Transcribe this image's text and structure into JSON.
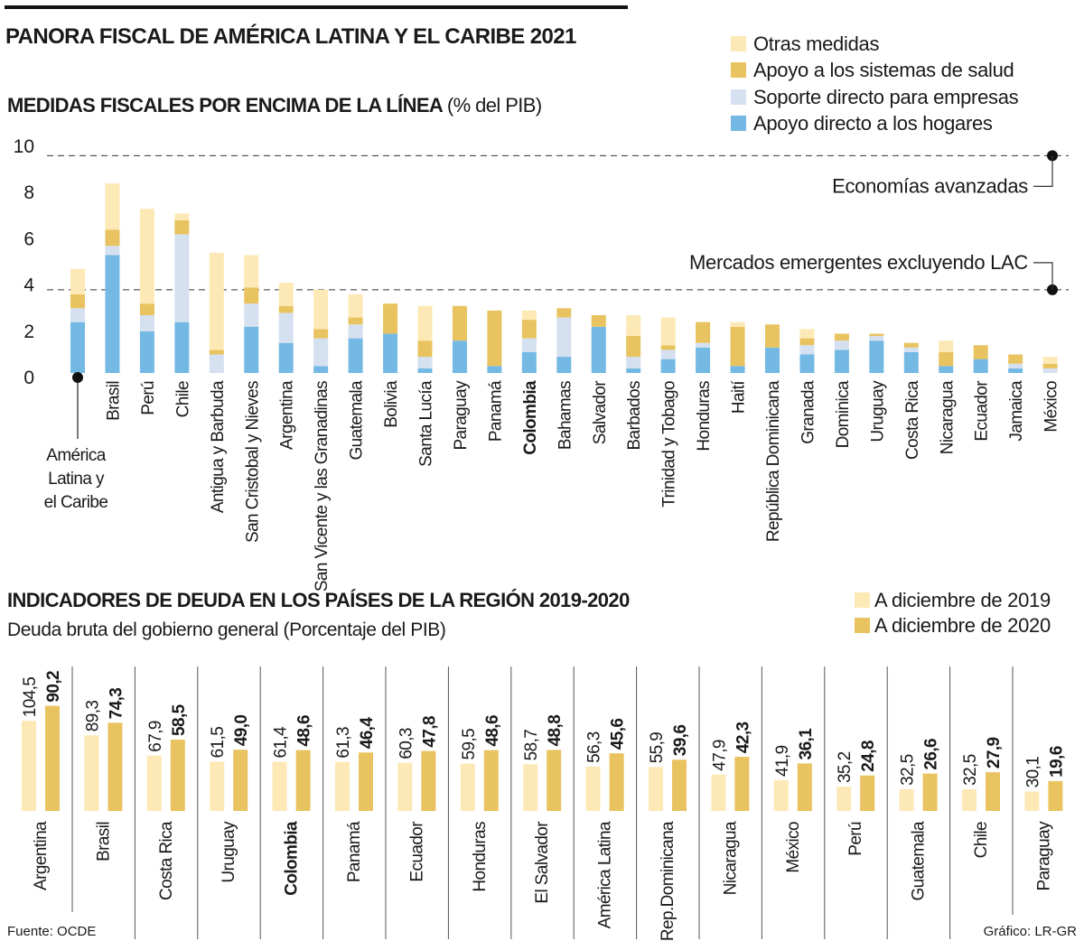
{
  "title": "PANORA FISCAL DE AMÉRICA LATINA Y EL CARIBE 2021",
  "colors": {
    "otras": "#fde9b5",
    "salud": "#e8c35f",
    "empresas": "#d5e0f0",
    "hogares": "#74b9e4",
    "debt2019": "#fde9b5",
    "debt2020": "#e8c35f"
  },
  "chart_data": [
    {
      "type": "bar",
      "stacked": true,
      "title": "MEDIDAS FISCALES POR ENCIMA DE LA LÍNEA",
      "title_unit": "(% del PIB)",
      "ylim": [
        0,
        10
      ],
      "yticks": [
        "0",
        "2",
        "4",
        "6",
        "8",
        "10"
      ],
      "legend_position": "top-right",
      "categories": [
        "América Latina y el Caribe",
        "Brasil",
        "Perú",
        "Chile",
        "Antigua y Barbuda",
        "San Cristobal y Nieves",
        "Argentina",
        "San Vicente y las Granadinas",
        "Guatemala",
        "Bolivia",
        "Santa Lucía",
        "Paraguay",
        "Panamá",
        "Colombia",
        "Bahamas",
        "Salvador",
        "Barbados",
        "Trinidad y Tobago",
        "Honduras",
        "Haití",
        "República Dominicana",
        "Granada",
        "Dominica",
        "Uruguay",
        "Costa Rica",
        "Nicaragua",
        "Ecuador",
        "Jamaica",
        "México"
      ],
      "category_label_lines": [
        "América",
        "Latina y",
        "el Caribe"
      ],
      "highlight": "Colombia",
      "series": [
        {
          "name": "Apoyo directo a los hogares",
          "values": [
            2.2,
            5.1,
            1.8,
            2.2,
            0,
            2.0,
            1.3,
            0.3,
            1.5,
            1.7,
            0.2,
            1.4,
            0.3,
            0.9,
            0.7,
            2.0,
            0.2,
            0.6,
            1.1,
            0.3,
            1.1,
            0.8,
            1.0,
            1.4,
            0.9,
            0.3,
            0.6,
            0.2,
            0
          ]
        },
        {
          "name": "Soporte directo para empresas",
          "values": [
            0.6,
            0.4,
            0.7,
            3.8,
            0.8,
            1.0,
            1.3,
            1.2,
            0.6,
            0,
            0.5,
            0,
            0,
            0.6,
            1.7,
            0,
            0.5,
            0.4,
            0.2,
            0,
            0,
            0.4,
            0.4,
            0.2,
            0.2,
            0,
            0,
            0.2,
            0.2
          ]
        },
        {
          "name": "Apoyo a los sistemas de salud",
          "values": [
            0.6,
            0.7,
            0.5,
            0.6,
            0.2,
            0.7,
            0.3,
            0.4,
            0.3,
            1.3,
            0.7,
            1.5,
            2.4,
            0.8,
            0.4,
            0.5,
            0.9,
            0.2,
            0.9,
            1.7,
            1.0,
            0.3,
            0.3,
            0.1,
            0.2,
            0.6,
            0.6,
            0.4,
            0.2
          ]
        },
        {
          "name": "Otras medidas",
          "values": [
            1.1,
            2.0,
            4.1,
            0.3,
            4.2,
            1.4,
            1.0,
            1.7,
            1.0,
            0,
            1.5,
            0,
            0,
            0.4,
            0,
            0,
            0.9,
            1.2,
            0,
            0.2,
            0,
            0.4,
            0,
            0,
            0,
            0.5,
            0,
            0,
            0.3
          ]
        }
      ],
      "legend_order": [
        "Otras medidas",
        "Apoyo a los sistemas de salud",
        "Soporte directo para empresas",
        "Apoyo directo a los hogares"
      ],
      "reference_lines": [
        {
          "label": "Economías avanzadas",
          "value": 9.4
        },
        {
          "label": "Mercados emergentes excluyendo LAC",
          "value": 3.6
        }
      ]
    },
    {
      "type": "bar",
      "title": "INDICADORES DE DEUDA EN LOS PAÍSES DE LA REGIÓN 2019-2020",
      "subtitle": "Deuda bruta del gobierno general (Porcentaje del PIB)",
      "legend_position": "top-right",
      "categories": [
        "Argentina",
        "Brasil",
        "Costa Rica",
        "Uruguay",
        "Colombia",
        "Panamá",
        "Ecuador",
        "Honduras",
        "El Salvador",
        "América Latina",
        "Rep.Dominicana",
        "Nicaragua",
        "México",
        "Perú",
        "Guatemala",
        "Chile",
        "Paraguay"
      ],
      "highlight": "Colombia",
      "series": [
        {
          "name": "A diciembre de 2019",
          "values": [
            104.5,
            89.3,
            67.9,
            61.5,
            61.4,
            61.3,
            60.3,
            59.5,
            58.7,
            56.3,
            55.9,
            47.9,
            41.9,
            35.2,
            32.5,
            32.5,
            30.1
          ],
          "labels": [
            "104,5",
            "89,3",
            "67,9",
            "61,5",
            "61,4",
            "61,3",
            "60,3",
            "59,5",
            "58,7",
            "56,3",
            "55,9",
            "47,9",
            "41,9",
            "35,2",
            "32,5",
            "32,5",
            "30,1"
          ]
        },
        {
          "name": "A diciembre de 2020",
          "values": [
            90.2,
            74.3,
            58.5,
            49.0,
            48.6,
            46.4,
            47.8,
            48.6,
            48.8,
            45.6,
            39.6,
            42.3,
            36.1,
            24.8,
            26.6,
            27.9,
            19.6
          ],
          "labels": [
            "90,2",
            "74,3",
            "58,5",
            "49,0",
            "48,6",
            "46,4",
            "47,8",
            "48,6",
            "48,8",
            "45,6",
            "39,6",
            "42,3",
            "36,1",
            "24,8",
            "26,6",
            "27,9",
            "19,6"
          ]
        }
      ]
    }
  ],
  "footer": {
    "source": "Fuente: OCDE",
    "credit": "Gráfico: LR-GR"
  }
}
